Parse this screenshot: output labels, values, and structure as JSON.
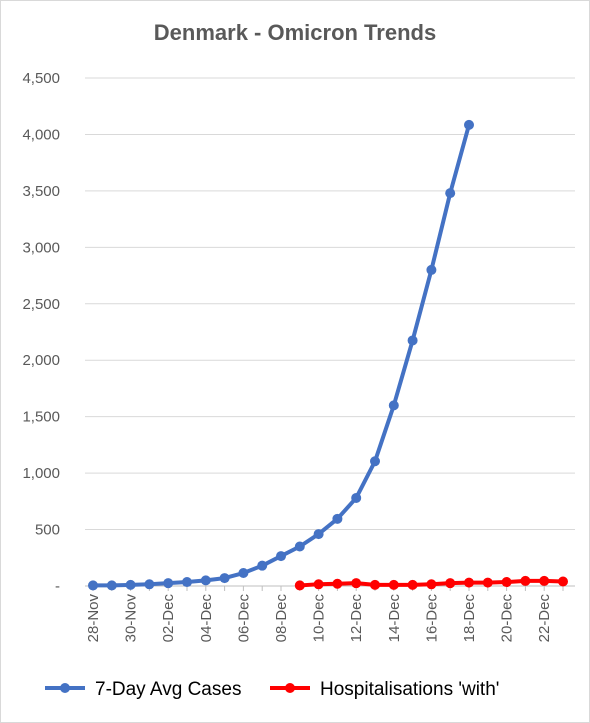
{
  "chart_data": {
    "type": "line",
    "title": "Denmark - Omicron Trends",
    "xlabel": "",
    "ylabel": "",
    "ylim": [
      0,
      4500
    ],
    "yticks": [
      0,
      500,
      1000,
      1500,
      2000,
      2500,
      3000,
      3500,
      4000,
      4500
    ],
    "ytick_labels": [
      "-",
      "500",
      "1,000",
      "1,500",
      "2,000",
      "2,500",
      "3,000",
      "3,500",
      "4,000",
      "4,500"
    ],
    "categories": [
      "28-Nov",
      "29-Nov",
      "30-Nov",
      "01-Dec",
      "02-Dec",
      "03-Dec",
      "04-Dec",
      "05-Dec",
      "06-Dec",
      "07-Dec",
      "08-Dec",
      "09-Dec",
      "10-Dec",
      "11-Dec",
      "12-Dec",
      "13-Dec",
      "14-Dec",
      "15-Dec",
      "16-Dec",
      "17-Dec",
      "18-Dec",
      "19-Dec",
      "20-Dec",
      "21-Dec",
      "22-Dec",
      "23-Dec"
    ],
    "xtick_labels": [
      "28-Nov",
      "30-Nov",
      "02-Dec",
      "04-Dec",
      "06-Dec",
      "08-Dec",
      "10-Dec",
      "12-Dec",
      "14-Dec",
      "16-Dec",
      "18-Dec",
      "20-Dec",
      "22-Dec"
    ],
    "grid": true,
    "legend": "bottom",
    "series": [
      {
        "name": "7-Day Avg Cases",
        "color": "#4472c4",
        "values": [
          5,
          5,
          10,
          15,
          25,
          35,
          50,
          70,
          115,
          180,
          265,
          350,
          460,
          595,
          780,
          1105,
          1600,
          2175,
          2800,
          3480,
          4085,
          null,
          null,
          null,
          null,
          null
        ]
      },
      {
        "name": "Hospitalisations 'with'",
        "color": "#ff0000",
        "values": [
          null,
          null,
          null,
          null,
          null,
          null,
          null,
          null,
          null,
          null,
          null,
          5,
          15,
          20,
          25,
          10,
          10,
          10,
          15,
          25,
          30,
          30,
          35,
          45,
          45,
          40
        ]
      }
    ]
  }
}
